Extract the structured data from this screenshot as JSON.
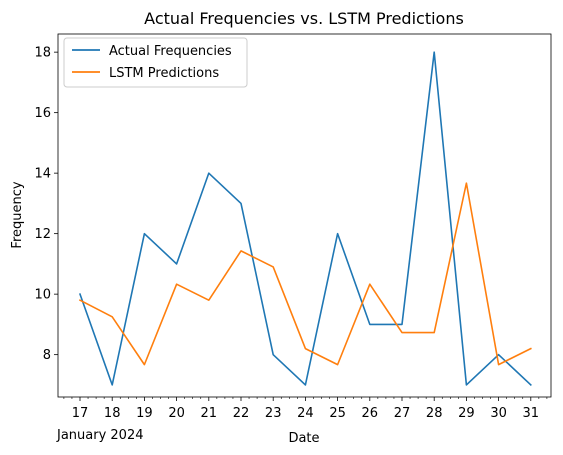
{
  "chart_data": {
    "type": "line",
    "title": "Actual Frequencies vs. LSTM Predictions",
    "xlabel": "Date",
    "ylabel": "Frequency",
    "x_offset_label": "January 2024",
    "x": [
      "17",
      "18",
      "19",
      "20",
      "21",
      "22",
      "23",
      "24",
      "25",
      "26",
      "27",
      "28",
      "29",
      "30",
      "31"
    ],
    "ylim": [
      6.6,
      18.6
    ],
    "yticks": [
      8,
      10,
      12,
      14,
      16,
      18
    ],
    "grid": false,
    "legend_position": "upper-left",
    "series": [
      {
        "name": "Actual Frequencies",
        "color": "#1f77b4",
        "values": [
          10,
          7,
          12,
          11,
          14,
          13,
          8,
          7,
          12,
          9,
          9,
          18,
          7,
          8,
          7
        ]
      },
      {
        "name": "LSTM Predictions",
        "color": "#ff7f0e",
        "values": [
          9.8,
          9.25,
          7.67,
          10.33,
          9.8,
          11.43,
          10.9,
          8.2,
          7.67,
          10.33,
          8.73,
          8.73,
          13.67,
          7.67,
          8.2
        ]
      }
    ]
  }
}
